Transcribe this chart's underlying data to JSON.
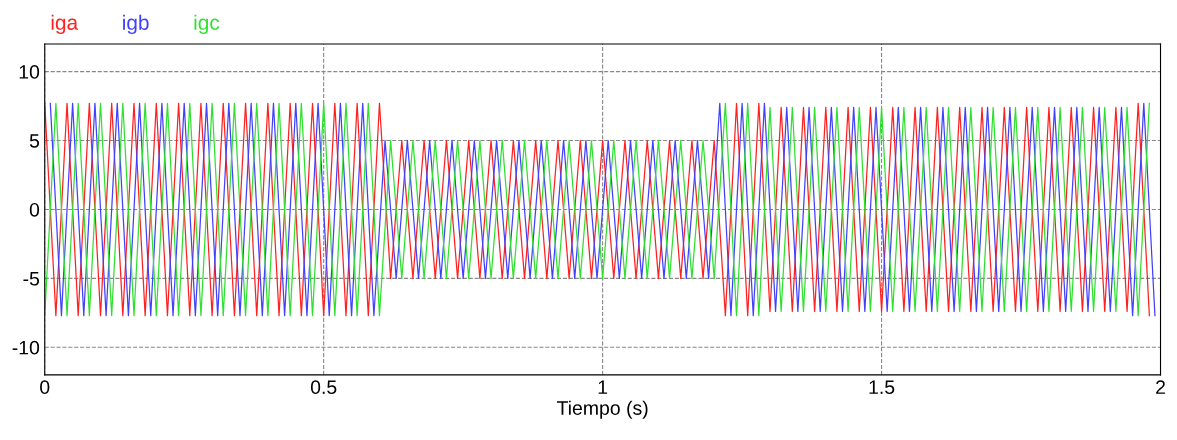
{
  "chart_data": {
    "type": "line",
    "xlabel": "Tiempo (s)",
    "xlim": [
      0,
      2
    ],
    "xticks": [
      0,
      0.5,
      1,
      1.5,
      2
    ],
    "ylim": [
      -12,
      12
    ],
    "yticks": [
      -10,
      -5,
      0,
      5,
      10
    ],
    "grid": true,
    "legend": "top left",
    "line_style": "solid",
    "marker": "none",
    "series": [
      {
        "name": "iga",
        "color": "#ff2020",
        "x": [
          0,
          0.02,
          0.04,
          0.06,
          0.08,
          0.1,
          0.12,
          0.14,
          0.16,
          0.18,
          0.2,
          0.22,
          0.24,
          0.26,
          0.28,
          0.3,
          0.32,
          0.34,
          0.36,
          0.38,
          0.4,
          0.42,
          0.44,
          0.46,
          0.48,
          0.5,
          0.52,
          0.54,
          0.56,
          0.58,
          0.6,
          0.62,
          0.64,
          0.66,
          0.68,
          0.7,
          0.72,
          0.74,
          0.76,
          0.78,
          0.8,
          0.82,
          0.84,
          0.86,
          0.88,
          0.9,
          0.92,
          0.94,
          0.96,
          0.98,
          1,
          1.02,
          1.04,
          1.06,
          1.08,
          1.1,
          1.12,
          1.14,
          1.16,
          1.18,
          1.2,
          1.22,
          1.24,
          1.26,
          1.28,
          1.3,
          1.32,
          1.34,
          1.36,
          1.38,
          1.4,
          1.42,
          1.44,
          1.46,
          1.48,
          1.5,
          1.52,
          1.54,
          1.56,
          1.58,
          1.6,
          1.62,
          1.64,
          1.66,
          1.68,
          1.7,
          1.72,
          1.74,
          1.76,
          1.78,
          1.8,
          1.82,
          1.84,
          1.86,
          1.88,
          1.9,
          1.92,
          1.94,
          1.96,
          1.98
        ],
        "values": [
          7.7,
          -7.7,
          7.7,
          -7.7,
          7.7,
          -7.7,
          7.7,
          -7.7,
          7.7,
          -7.7,
          7.7,
          -7.7,
          7.7,
          -7.7,
          7.7,
          -7.7,
          7.7,
          -7.7,
          7.7,
          -7.7,
          7.7,
          -7.7,
          7.7,
          -7.7,
          7.7,
          -7.7,
          7.7,
          -7.7,
          7.7,
          -7.7,
          7.7,
          -5,
          5,
          -5,
          5,
          -5,
          5,
          -5,
          5,
          -5,
          5,
          -5,
          5,
          -5,
          5,
          -5,
          5,
          -5,
          5,
          -5,
          5,
          -5,
          5,
          -5,
          5,
          -5,
          5,
          -5,
          5,
          -5,
          5,
          -7.7,
          7.7,
          -7.7,
          7.7,
          -7.4,
          7.4,
          -7.4,
          7.4,
          -7.4,
          7.4,
          -7.4,
          7.4,
          -7.4,
          7.4,
          -7.4,
          7.4,
          -7.4,
          7.4,
          -7.4,
          7.4,
          -7.4,
          7.4,
          -7.4,
          7.4,
          -7.4,
          7.4,
          -7.4,
          7.4,
          -7.4,
          7.4,
          -7.4,
          7.4,
          -7.4,
          7.4,
          -7.4,
          7.4,
          -7.4,
          7.7,
          -7.7
        ]
      },
      {
        "name": "igb",
        "color": "#4040ff",
        "x": [
          0.01,
          0.03,
          0.05,
          0.07,
          0.09,
          0.11,
          0.13,
          0.15,
          0.17,
          0.19,
          0.21,
          0.23,
          0.25,
          0.27,
          0.29,
          0.31,
          0.33,
          0.35,
          0.37,
          0.39,
          0.41,
          0.43,
          0.45,
          0.47,
          0.49,
          0.51,
          0.53,
          0.55,
          0.57,
          0.59,
          0.61,
          0.63,
          0.65,
          0.67,
          0.69,
          0.71,
          0.73,
          0.75,
          0.77,
          0.79,
          0.81,
          0.83,
          0.85,
          0.87,
          0.89,
          0.91,
          0.93,
          0.95,
          0.97,
          0.99,
          1.01,
          1.03,
          1.05,
          1.07,
          1.09,
          1.11,
          1.13,
          1.15,
          1.17,
          1.19,
          1.21,
          1.23,
          1.25,
          1.27,
          1.29,
          1.31,
          1.33,
          1.35,
          1.37,
          1.39,
          1.41,
          1.43,
          1.45,
          1.47,
          1.49,
          1.51,
          1.53,
          1.55,
          1.57,
          1.59,
          1.61,
          1.63,
          1.65,
          1.67,
          1.69,
          1.71,
          1.73,
          1.75,
          1.77,
          1.79,
          1.81,
          1.83,
          1.85,
          1.87,
          1.89,
          1.91,
          1.93,
          1.95,
          1.97,
          1.99
        ],
        "values": [
          7.7,
          -7.7,
          7.7,
          -7.7,
          7.7,
          -7.7,
          7.7,
          -7.7,
          7.7,
          -7.7,
          7.7,
          -7.7,
          7.7,
          -7.7,
          7.7,
          -7.7,
          7.7,
          -7.7,
          7.7,
          -7.7,
          7.7,
          -7.7,
          7.7,
          -7.7,
          7.7,
          -7.7,
          7.7,
          -7.7,
          7.7,
          -7.7,
          5,
          -5,
          5,
          -5,
          5,
          -5,
          5,
          -5,
          5,
          -5,
          5,
          -5,
          5,
          -5,
          5,
          -5,
          5,
          -5,
          5,
          -5,
          5,
          -5,
          5,
          -5,
          5,
          -5,
          5,
          -5,
          5,
          -5,
          7.7,
          -7.7,
          7.7,
          -7.7,
          7.7,
          -7.4,
          7.4,
          -7.4,
          7.4,
          -7.4,
          7.4,
          -7.4,
          7.4,
          -7.4,
          7.4,
          -7.4,
          7.4,
          -7.4,
          7.4,
          -7.4,
          7.4,
          -7.4,
          7.4,
          -7.4,
          7.4,
          -7.4,
          7.4,
          -7.4,
          7.4,
          -7.4,
          7.4,
          -7.4,
          7.4,
          -7.4,
          7.4,
          -7.4,
          7.4,
          -7.7,
          7.7,
          -7.7
        ]
      },
      {
        "name": "igc",
        "color": "#30e030",
        "x": [
          0,
          0.02,
          0.04,
          0.06,
          0.08,
          0.1,
          0.12,
          0.14,
          0.16,
          0.18,
          0.2,
          0.22,
          0.24,
          0.26,
          0.28,
          0.3,
          0.32,
          0.34,
          0.36,
          0.38,
          0.4,
          0.42,
          0.44,
          0.46,
          0.48,
          0.5,
          0.52,
          0.54,
          0.56,
          0.58,
          0.6,
          0.62,
          0.64,
          0.66,
          0.68,
          0.7,
          0.72,
          0.74,
          0.76,
          0.78,
          0.8,
          0.82,
          0.84,
          0.86,
          0.88,
          0.9,
          0.92,
          0.94,
          0.96,
          0.98,
          1,
          1.02,
          1.04,
          1.06,
          1.08,
          1.1,
          1.12,
          1.14,
          1.16,
          1.18,
          1.2,
          1.22,
          1.24,
          1.26,
          1.28,
          1.3,
          1.32,
          1.34,
          1.36,
          1.38,
          1.4,
          1.42,
          1.44,
          1.46,
          1.48,
          1.5,
          1.52,
          1.54,
          1.56,
          1.58,
          1.6,
          1.62,
          1.64,
          1.66,
          1.68,
          1.7,
          1.72,
          1.74,
          1.76,
          1.78,
          1.8,
          1.82,
          1.84,
          1.86,
          1.88,
          1.9,
          1.92,
          1.94,
          1.96,
          1.98
        ],
        "values": [
          -7.7,
          7.7,
          -7.7,
          7.7,
          -7.7,
          7.7,
          -7.7,
          7.7,
          -7.7,
          7.7,
          -7.7,
          7.7,
          -7.7,
          7.7,
          -7.7,
          7.7,
          -7.7,
          7.7,
          -7.7,
          7.7,
          -7.7,
          7.7,
          -7.7,
          7.7,
          -7.7,
          7.7,
          -7.7,
          7.7,
          -7.7,
          7.7,
          -7.7,
          5,
          -5,
          5,
          -5,
          5,
          -5,
          5,
          -5,
          5,
          -5,
          5,
          -5,
          5,
          -5,
          5,
          -5,
          5,
          -5,
          5,
          -5,
          5,
          -5,
          5,
          -5,
          5,
          -5,
          5,
          -5,
          5,
          -5,
          7.7,
          -7.7,
          7.7,
          -7.7,
          7.4,
          -7.4,
          7.4,
          -7.4,
          7.4,
          -7.4,
          7.4,
          -7.4,
          7.4,
          -7.4,
          7.4,
          -7.4,
          7.4,
          -7.4,
          7.4,
          -7.4,
          7.4,
          -7.4,
          7.4,
          -7.4,
          7.4,
          -7.4,
          7.4,
          -7.4,
          7.4,
          -7.4,
          7.4,
          -7.4,
          7.4,
          -7.4,
          7.4,
          -7.4,
          7.4,
          -7.7,
          7.7
        ]
      }
    ]
  }
}
